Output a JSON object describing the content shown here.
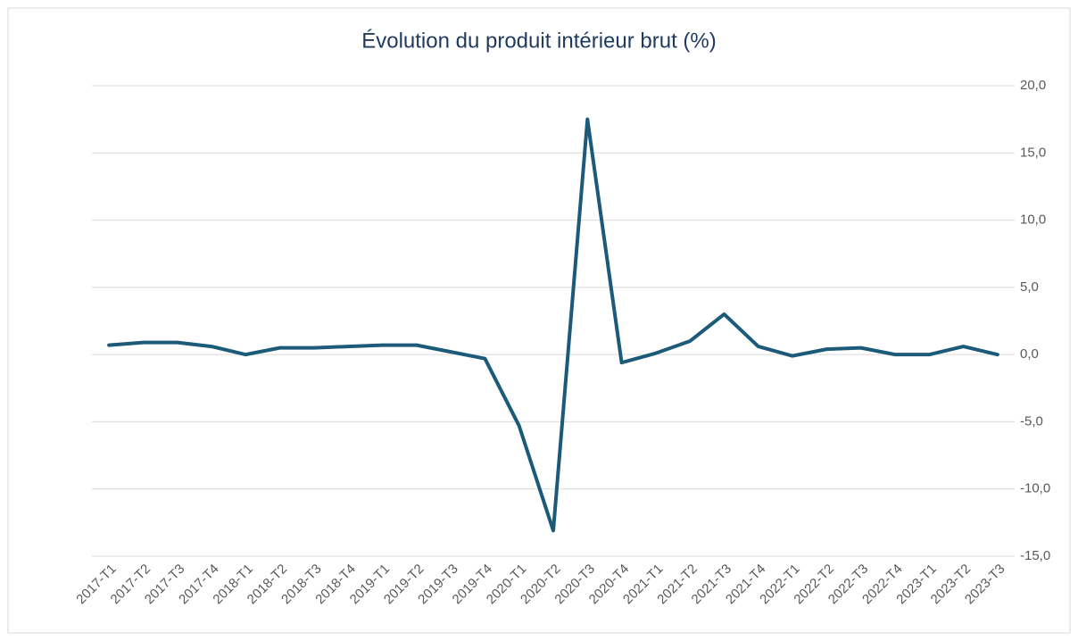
{
  "chart_data": {
    "type": "line",
    "title": "Évolution du produit intérieur brut (%)",
    "categories": [
      "2017-T1",
      "2017-T2",
      "2017-T3",
      "2017-T4",
      "2018-T1",
      "2018-T2",
      "2018-T3",
      "2018-T4",
      "2019-T1",
      "2019-T2",
      "2019-T3",
      "2019-T4",
      "2020-T1",
      "2020-T2",
      "2020-T3",
      "2020-T4",
      "2021-T1",
      "2021-T2",
      "2021-T3",
      "2021-T4",
      "2022-T1",
      "2022-T2",
      "2022-T3",
      "2022-T4",
      "2023-T1",
      "2023-T2",
      "2023-T3"
    ],
    "values": [
      0.7,
      0.9,
      0.9,
      0.6,
      0.0,
      0.5,
      0.5,
      0.6,
      0.7,
      0.7,
      0.2,
      -0.3,
      -5.3,
      -13.1,
      17.5,
      -0.6,
      0.1,
      1.0,
      3.0,
      0.6,
      -0.1,
      0.4,
      0.5,
      0.0,
      0.0,
      0.6,
      0.0
    ],
    "color": "#1c5a7a",
    "ylim": [
      -15,
      20
    ],
    "yticks": [
      {
        "value": -15,
        "label": "-15,0"
      },
      {
        "value": -10,
        "label": "-10,0"
      },
      {
        "value": -5,
        "label": "-5,0"
      },
      {
        "value": 0,
        "label": "0,0"
      },
      {
        "value": 5,
        "label": "5,0"
      },
      {
        "value": 10,
        "label": "10,0"
      },
      {
        "value": 15,
        "label": "15,0"
      },
      {
        "value": 20,
        "label": "20,0"
      }
    ],
    "grid": true
  }
}
